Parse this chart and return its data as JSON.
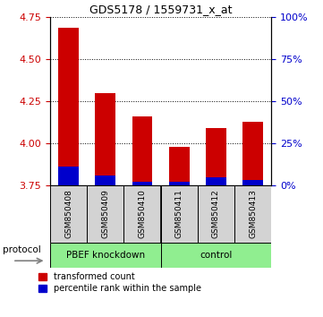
{
  "title": "GDS5178 / 1559731_x_at",
  "samples": [
    "GSM850408",
    "GSM850409",
    "GSM850410",
    "GSM850411",
    "GSM850412",
    "GSM850413"
  ],
  "transformed_counts": [
    4.69,
    4.3,
    4.16,
    3.98,
    4.09,
    4.13
  ],
  "percentile_blue_tops": [
    3.86,
    3.81,
    3.77,
    3.77,
    3.8,
    3.78
  ],
  "y_min": 3.75,
  "y_max": 4.75,
  "y_ticks_left": [
    3.75,
    4.0,
    4.25,
    4.5,
    4.75
  ],
  "y_ticks_right_pct": [
    0,
    25,
    50,
    75,
    100
  ],
  "bar_color_red": "#cc0000",
  "bar_color_blue": "#0000cc",
  "left_tick_color": "#cc0000",
  "right_tick_color": "#0000cc",
  "bar_width": 0.55,
  "group1_label": "PBEF knockdown",
  "group2_label": "control",
  "group_color": "#90ee90",
  "protocol_label": "protocol",
  "legend_red_label": "transformed count",
  "legend_blue_label": "percentile rank within the sample"
}
